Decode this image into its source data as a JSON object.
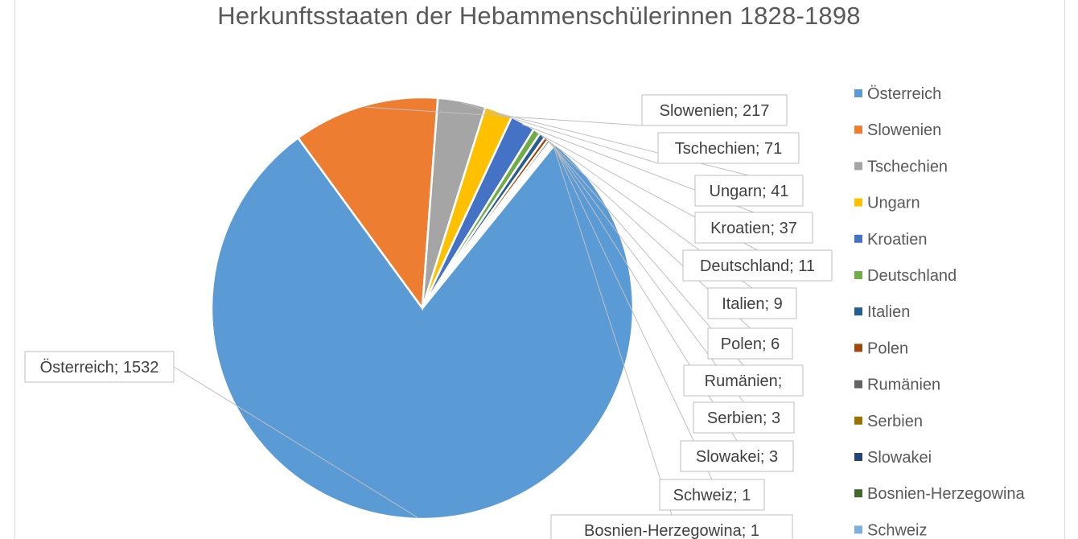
{
  "chart_data": {
    "type": "pie",
    "title": "Herkunftsstaaten der Hebammenschülerinnen 1828-1898",
    "slices": [
      {
        "name": "Österreich",
        "value": 1532,
        "label": "Österreich; 1532",
        "color": "#5b9bd5"
      },
      {
        "name": "Slowenien",
        "value": 217,
        "label": "Slowenien; 217",
        "color": "#ed7d31"
      },
      {
        "name": "Tschechien",
        "value": 71,
        "label": "Tschechien; 71",
        "color": "#a5a5a5"
      },
      {
        "name": "Ungarn",
        "value": 41,
        "label": "Ungarn; 41",
        "color": "#ffc000"
      },
      {
        "name": "Kroatien",
        "value": 37,
        "label": "Kroatien; 37",
        "color": "#4472c4"
      },
      {
        "name": "Deutschland",
        "value": 11,
        "label": "Deutschland; 11",
        "color": "#70ad47"
      },
      {
        "name": "Italien",
        "value": 9,
        "label": "Italien; 9",
        "color": "#255e91"
      },
      {
        "name": "Polen",
        "value": 6,
        "label": "Polen; 6",
        "color": "#9e480e"
      },
      {
        "name": "Rumänien",
        "value": 4,
        "label": "Rumänien;",
        "color": "#636363"
      },
      {
        "name": "Serbien",
        "value": 3,
        "label": "Serbien; 3",
        "color": "#997300"
      },
      {
        "name": "Slowakei",
        "value": 3,
        "label": "Slowakei; 3",
        "color": "#264478"
      },
      {
        "name": "Bosnien-Herzegowina",
        "value": 1,
        "label": "Bosnien-Herzegowina; 1",
        "color": "#43682b"
      },
      {
        "name": "Schweiz",
        "value": 1,
        "label": "Schweiz; 1",
        "color": "#7cafdd"
      }
    ],
    "legend_position": "right"
  }
}
